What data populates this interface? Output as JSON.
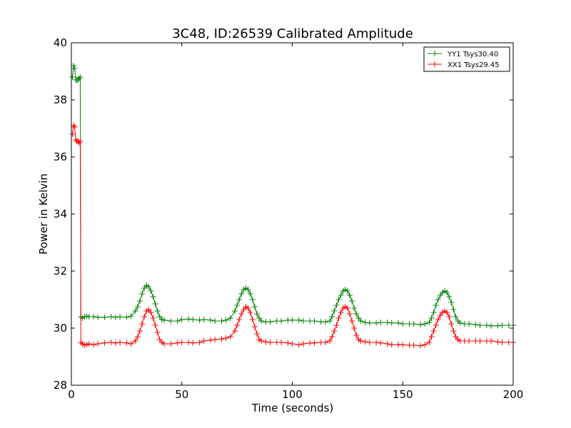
{
  "chart_data": {
    "type": "line",
    "title": "3C48, ID:26539 Calibrated Amplitude",
    "xlabel": "Time (seconds)",
    "ylabel": "Power in Kelvin",
    "xlim": [
      0,
      200
    ],
    "ylim": [
      28,
      40
    ],
    "xticks": [
      0,
      50,
      100,
      150,
      200
    ],
    "yticks": [
      28,
      30,
      32,
      34,
      36,
      38,
      40
    ],
    "grid": false,
    "legend_position": "top-right",
    "marker": "+",
    "series": [
      {
        "name": "YY1 Tsys30.40",
        "color": "#008000",
        "points": [
          [
            0.5,
            38.8
          ],
          [
            1,
            39.2
          ],
          [
            1.5,
            39.1
          ],
          [
            2,
            38.7
          ],
          [
            2.5,
            38.7
          ],
          [
            3,
            38.7
          ],
          [
            3.5,
            38.75
          ],
          [
            4,
            38.8
          ],
          [
            4.3,
            30.4
          ],
          [
            5,
            30.35
          ],
          [
            6,
            30.4
          ],
          [
            7,
            30.42
          ],
          [
            8,
            30.4
          ],
          [
            10,
            30.4
          ],
          [
            12,
            30.38
          ],
          [
            15,
            30.38
          ],
          [
            18,
            30.4
          ],
          [
            20,
            30.38
          ],
          [
            22,
            30.4
          ],
          [
            25,
            30.38
          ],
          [
            27,
            30.42
          ],
          [
            29,
            30.6
          ],
          [
            30,
            30.75
          ],
          [
            31,
            30.95
          ],
          [
            32,
            31.2
          ],
          [
            33,
            31.4
          ],
          [
            34,
            31.5
          ],
          [
            35,
            31.45
          ],
          [
            36,
            31.3
          ],
          [
            37,
            31.1
          ],
          [
            38,
            30.85
          ],
          [
            39,
            30.6
          ],
          [
            40,
            30.4
          ],
          [
            41,
            30.3
          ],
          [
            42,
            30.28
          ],
          [
            45,
            30.25
          ],
          [
            48,
            30.25
          ],
          [
            50,
            30.3
          ],
          [
            53,
            30.32
          ],
          [
            55,
            30.3
          ],
          [
            58,
            30.28
          ],
          [
            60,
            30.3
          ],
          [
            63,
            30.28
          ],
          [
            65,
            30.25
          ],
          [
            68,
            30.25
          ],
          [
            70,
            30.28
          ],
          [
            72,
            30.35
          ],
          [
            74,
            30.6
          ],
          [
            75,
            30.8
          ],
          [
            76,
            31.0
          ],
          [
            77,
            31.2
          ],
          [
            78,
            31.35
          ],
          [
            79,
            31.4
          ],
          [
            80,
            31.35
          ],
          [
            81,
            31.2
          ],
          [
            82,
            31.0
          ],
          [
            83,
            30.75
          ],
          [
            84,
            30.5
          ],
          [
            85,
            30.35
          ],
          [
            86,
            30.25
          ],
          [
            88,
            30.22
          ],
          [
            90,
            30.22
          ],
          [
            93,
            30.25
          ],
          [
            95,
            30.25
          ],
          [
            98,
            30.28
          ],
          [
            100,
            30.28
          ],
          [
            103,
            30.28
          ],
          [
            105,
            30.25
          ],
          [
            108,
            30.25
          ],
          [
            110,
            30.25
          ],
          [
            113,
            30.22
          ],
          [
            115,
            30.22
          ],
          [
            117,
            30.25
          ],
          [
            118,
            30.4
          ],
          [
            119,
            30.6
          ],
          [
            120,
            30.8
          ],
          [
            121,
            31.0
          ],
          [
            122,
            31.15
          ],
          [
            123,
            31.3
          ],
          [
            124,
            31.35
          ],
          [
            125,
            31.3
          ],
          [
            126,
            31.15
          ],
          [
            127,
            30.95
          ],
          [
            128,
            30.7
          ],
          [
            129,
            30.5
          ],
          [
            130,
            30.35
          ],
          [
            131,
            30.25
          ],
          [
            133,
            30.2
          ],
          [
            135,
            30.18
          ],
          [
            138,
            30.18
          ],
          [
            140,
            30.2
          ],
          [
            143,
            30.2
          ],
          [
            145,
            30.18
          ],
          [
            148,
            30.18
          ],
          [
            150,
            30.15
          ],
          [
            153,
            30.15
          ],
          [
            155,
            30.15
          ],
          [
            158,
            30.12
          ],
          [
            160,
            30.15
          ],
          [
            162,
            30.2
          ],
          [
            163,
            30.35
          ],
          [
            164,
            30.55
          ],
          [
            165,
            30.8
          ],
          [
            166,
            31.0
          ],
          [
            167,
            31.15
          ],
          [
            168,
            31.25
          ],
          [
            169,
            31.3
          ],
          [
            170,
            31.25
          ],
          [
            171,
            31.1
          ],
          [
            172,
            30.9
          ],
          [
            173,
            30.65
          ],
          [
            174,
            30.4
          ],
          [
            175,
            30.25
          ],
          [
            176,
            30.18
          ],
          [
            178,
            30.15
          ],
          [
            180,
            30.15
          ],
          [
            183,
            30.12
          ],
          [
            185,
            30.1
          ],
          [
            188,
            30.1
          ],
          [
            190,
            30.08
          ],
          [
            193,
            30.08
          ],
          [
            195,
            30.1
          ],
          [
            198,
            30.1
          ],
          [
            200,
            30.1
          ]
        ]
      },
      {
        "name": "XX1 Tsys29.45",
        "color": "#ff0000",
        "points": [
          [
            0.5,
            36.8
          ],
          [
            1,
            37.1
          ],
          [
            1.5,
            37.05
          ],
          [
            2,
            36.6
          ],
          [
            2.5,
            36.55
          ],
          [
            3,
            36.55
          ],
          [
            3.5,
            36.5
          ],
          [
            4,
            36.55
          ],
          [
            4.3,
            29.5
          ],
          [
            5,
            29.45
          ],
          [
            6,
            29.4
          ],
          [
            7,
            29.42
          ],
          [
            8,
            29.45
          ],
          [
            10,
            29.42
          ],
          [
            12,
            29.45
          ],
          [
            15,
            29.48
          ],
          [
            18,
            29.5
          ],
          [
            20,
            29.48
          ],
          [
            22,
            29.5
          ],
          [
            25,
            29.48
          ],
          [
            27,
            29.45
          ],
          [
            29,
            29.55
          ],
          [
            30,
            29.7
          ],
          [
            31,
            29.9
          ],
          [
            32,
            30.15
          ],
          [
            33,
            30.4
          ],
          [
            34,
            30.6
          ],
          [
            35,
            30.65
          ],
          [
            36,
            30.55
          ],
          [
            37,
            30.35
          ],
          [
            38,
            30.1
          ],
          [
            39,
            29.85
          ],
          [
            40,
            29.6
          ],
          [
            41,
            29.5
          ],
          [
            42,
            29.45
          ],
          [
            45,
            29.45
          ],
          [
            48,
            29.48
          ],
          [
            50,
            29.5
          ],
          [
            53,
            29.5
          ],
          [
            55,
            29.48
          ],
          [
            58,
            29.5
          ],
          [
            60,
            29.55
          ],
          [
            63,
            29.58
          ],
          [
            65,
            29.6
          ],
          [
            68,
            29.62
          ],
          [
            70,
            29.65
          ],
          [
            72,
            29.7
          ],
          [
            74,
            29.9
          ],
          [
            75,
            30.1
          ],
          [
            76,
            30.3
          ],
          [
            77,
            30.5
          ],
          [
            78,
            30.65
          ],
          [
            79,
            30.75
          ],
          [
            80,
            30.7
          ],
          [
            81,
            30.55
          ],
          [
            82,
            30.3
          ],
          [
            83,
            30.05
          ],
          [
            84,
            29.8
          ],
          [
            85,
            29.6
          ],
          [
            86,
            29.55
          ],
          [
            88,
            29.52
          ],
          [
            90,
            29.5
          ],
          [
            93,
            29.5
          ],
          [
            95,
            29.5
          ],
          [
            98,
            29.48
          ],
          [
            100,
            29.45
          ],
          [
            103,
            29.42
          ],
          [
            105,
            29.45
          ],
          [
            108,
            29.48
          ],
          [
            110,
            29.48
          ],
          [
            113,
            29.5
          ],
          [
            115,
            29.5
          ],
          [
            117,
            29.55
          ],
          [
            118,
            29.7
          ],
          [
            119,
            29.9
          ],
          [
            120,
            30.1
          ],
          [
            121,
            30.35
          ],
          [
            122,
            30.55
          ],
          [
            123,
            30.7
          ],
          [
            124,
            30.75
          ],
          [
            125,
            30.7
          ],
          [
            126,
            30.5
          ],
          [
            127,
            30.25
          ],
          [
            128,
            30.0
          ],
          [
            129,
            29.75
          ],
          [
            130,
            29.6
          ],
          [
            131,
            29.55
          ],
          [
            133,
            29.52
          ],
          [
            135,
            29.5
          ],
          [
            138,
            29.5
          ],
          [
            140,
            29.48
          ],
          [
            143,
            29.45
          ],
          [
            145,
            29.42
          ],
          [
            148,
            29.42
          ],
          [
            150,
            29.42
          ],
          [
            153,
            29.4
          ],
          [
            155,
            29.4
          ],
          [
            158,
            29.38
          ],
          [
            160,
            29.42
          ],
          [
            162,
            29.5
          ],
          [
            163,
            29.7
          ],
          [
            164,
            29.9
          ],
          [
            165,
            30.1
          ],
          [
            166,
            30.3
          ],
          [
            167,
            30.45
          ],
          [
            168,
            30.55
          ],
          [
            169,
            30.6
          ],
          [
            170,
            30.55
          ],
          [
            171,
            30.4
          ],
          [
            172,
            30.15
          ],
          [
            173,
            29.9
          ],
          [
            174,
            29.7
          ],
          [
            175,
            29.6
          ],
          [
            176,
            29.55
          ],
          [
            178,
            29.55
          ],
          [
            180,
            29.55
          ],
          [
            183,
            29.55
          ],
          [
            185,
            29.55
          ],
          [
            188,
            29.55
          ],
          [
            190,
            29.55
          ],
          [
            193,
            29.52
          ],
          [
            195,
            29.5
          ],
          [
            198,
            29.5
          ],
          [
            200,
            29.5
          ]
        ]
      }
    ]
  }
}
